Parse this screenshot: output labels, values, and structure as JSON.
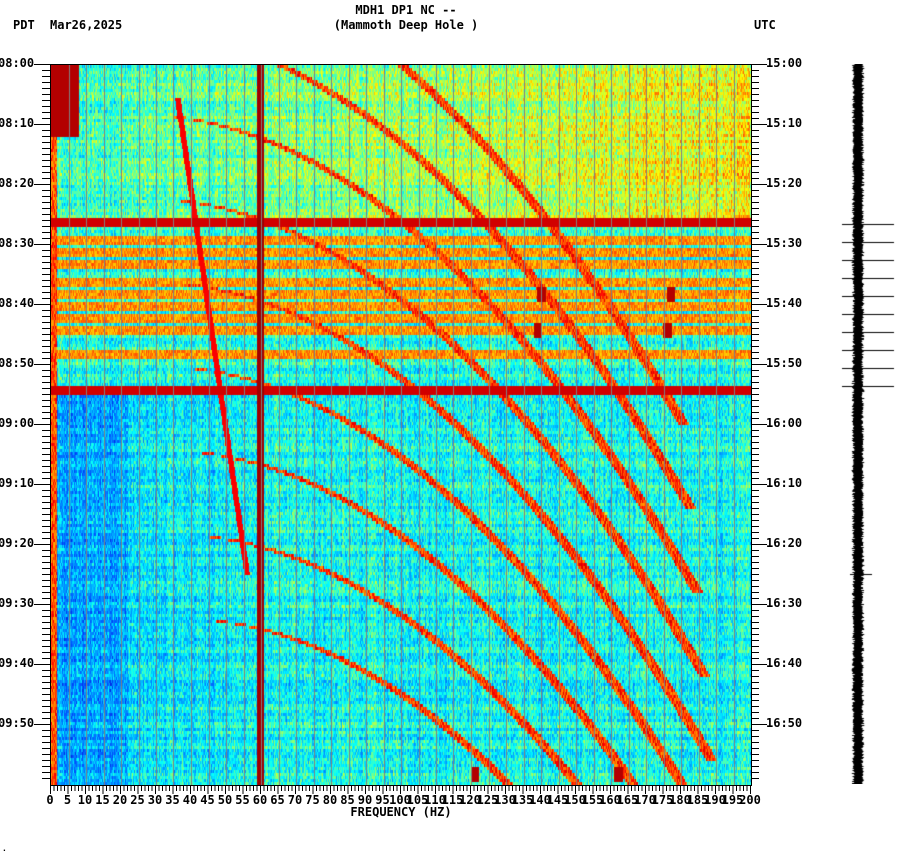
{
  "header": {
    "station_line": "MDH1 DP1 NC --",
    "station_name": "(Mammoth Deep Hole )",
    "left_timezone": "PDT",
    "date": "Mar26,2025",
    "right_timezone": "UTC"
  },
  "footer": {
    "corner_mark": "·"
  },
  "colors": {
    "background": "#ffffff",
    "axis": "#000000",
    "gridline": "#808080",
    "colormap": [
      "#0000c8",
      "#0050ff",
      "#00a0ff",
      "#00ffff",
      "#80ff80",
      "#ffff00",
      "#ff8000",
      "#ff0000",
      "#800000"
    ]
  },
  "chart_data": {
    "type": "heatmap",
    "title": "MDH1 DP1 NC -- (Mammoth Deep Hole )",
    "xlabel": "FREQUENCY (HZ)",
    "ylabel_left": "PDT",
    "ylabel_right": "UTC",
    "xlim": [
      0,
      200
    ],
    "x_ticks": [
      "0",
      "5",
      "10",
      "15",
      "20",
      "25",
      "30",
      "35",
      "40",
      "45",
      "50",
      "55",
      "60",
      "65",
      "70",
      "75",
      "80",
      "85",
      "90",
      "95",
      "100",
      "105",
      "110",
      "115",
      "120",
      "125",
      "130",
      "135",
      "140",
      "145",
      "150",
      "155",
      "160",
      "165",
      "170",
      "175",
      "180",
      "185",
      "190",
      "195",
      "200"
    ],
    "y_ticks_left": [
      "08:00",
      "08:10",
      "08:20",
      "08:30",
      "08:40",
      "08:50",
      "09:00",
      "09:10",
      "09:20",
      "09:30",
      "09:40",
      "09:50"
    ],
    "y_ticks_right": [
      "15:00",
      "15:10",
      "15:20",
      "15:30",
      "15:40",
      "15:50",
      "16:00",
      "16:10",
      "16:20",
      "16:30",
      "16:40",
      "16:50"
    ],
    "time_span_minutes": 120,
    "minor_tick_interval_minutes": 1,
    "features": {
      "persistent_lines_hz": [
        59.5,
        60
      ],
      "high_power_period_pdt": [
        "08:00",
        "08:27"
      ],
      "broadband_bursts_pdt": [
        "08:26",
        "08:29",
        "08:31",
        "08:33",
        "08:36",
        "08:38",
        "08:40",
        "08:42",
        "08:44",
        "08:48",
        "08:54"
      ],
      "strong_horizontal_lines_pdt": [
        "08:26",
        "08:54"
      ],
      "low_frequency_high_power_hz": [
        0,
        8
      ],
      "descending_tone_pdt": [
        "08:05",
        "09:25"
      ],
      "transient_spots": [
        {
          "hz": 140,
          "pdt": "08:38"
        },
        {
          "hz": 177,
          "pdt": "08:38"
        },
        {
          "hz": 139,
          "pdt": "08:44"
        },
        {
          "hz": 176,
          "pdt": "08:44"
        },
        {
          "hz": 121,
          "pdt": "09:58"
        },
        {
          "hz": 162,
          "pdt": "09:58"
        }
      ]
    }
  }
}
